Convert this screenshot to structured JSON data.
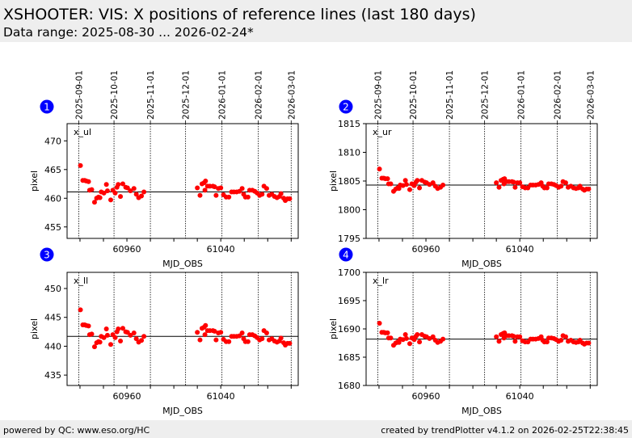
{
  "header": {
    "title": "XSHOOTER: VIS: X positions of reference lines (last 180 days)",
    "subtitle": "Data range: 2025-08-30 ... 2026-02-24*"
  },
  "footer": {
    "left": "powered by QC: www.eso.org/HC",
    "right": "created by trendPlotter v4.1.2 on 2026-02-25T22:38:45"
  },
  "colors": {
    "point": "#ff0000",
    "badge": "#0000ff",
    "ref_line": "#000000",
    "header_bg": "#eeeeee"
  },
  "chart_data": [
    {
      "type": "scatter",
      "panel": "1",
      "series_label": "x_ul",
      "xlabel": "MJD_OBS",
      "ylabel": "pixel",
      "xlim": [
        60909,
        61106
      ],
      "ylim": [
        453,
        473
      ],
      "yticks": [
        455,
        460,
        465,
        470
      ],
      "xticks": [
        60960,
        61040
      ],
      "xminor": [
        60920,
        60940,
        60960,
        60980,
        61000,
        61020,
        61040,
        61060,
        61080,
        61100
      ],
      "date_ticks": [
        {
          "label": "2025-09-01",
          "mjd": 60919
        },
        {
          "label": "2025-10-01",
          "mjd": 60949
        },
        {
          "label": "2025-11-01",
          "mjd": 60980
        },
        {
          "label": "2025-12-01",
          "mjd": 61010
        },
        {
          "label": "2026-01-01",
          "mjd": 61041
        },
        {
          "label": "2026-02-01",
          "mjd": 61072
        },
        {
          "label": "2026-03-01",
          "mjd": 61100
        }
      ],
      "reference": 461.1,
      "values": [
        465.7,
        463.1,
        463.1,
        463.0,
        462.9,
        461.4,
        461.5,
        459.3,
        460.0,
        460.2,
        460.1,
        461.1,
        460.9,
        462.4,
        461.3,
        459.7,
        461.4,
        460.9,
        461.9,
        462.4,
        460.3,
        462.5,
        461.9,
        461.8,
        461.3,
        461.7,
        460.7,
        460.1,
        460.4,
        461.1,
        461.8,
        460.5,
        462.5,
        462.7,
        463.0,
        461.4,
        462.1,
        462.1,
        462.1,
        462.0,
        460.5,
        461.7,
        461.8,
        460.6,
        460.2,
        460.2,
        461.1,
        461.1,
        461.1,
        461.2,
        461.7,
        460.7,
        460.2,
        460.2,
        461.4,
        461.4,
        461.2,
        460.9,
        460.5,
        460.7,
        462.1,
        461.7,
        460.5,
        460.7,
        460.3,
        460.1,
        460.3,
        460.8,
        460.0,
        459.6,
        459.9,
        459.9
      ]
    },
    {
      "type": "scatter",
      "panel": "2",
      "series_label": "x_ur",
      "xlabel": "MJD_OBS",
      "ylabel": "pixel",
      "xlim": [
        60909,
        61106
      ],
      "ylim": [
        1795,
        1815
      ],
      "yticks": [
        1795,
        1800,
        1805,
        1810,
        1815
      ],
      "xticks": [
        60960,
        61040
      ],
      "xminor": [
        60920,
        60940,
        60960,
        60980,
        61000,
        61020,
        61040,
        61060,
        61080,
        61100
      ],
      "date_ticks": [
        {
          "label": "2025-09-01",
          "mjd": 60919
        },
        {
          "label": "2025-10-01",
          "mjd": 60949
        },
        {
          "label": "2025-11-01",
          "mjd": 60980
        },
        {
          "label": "2025-12-01",
          "mjd": 61010
        },
        {
          "label": "2026-01-01",
          "mjd": 61041
        },
        {
          "label": "2026-02-01",
          "mjd": 61072
        },
        {
          "label": "2026-03-01",
          "mjd": 61100
        }
      ],
      "reference": 1804.3,
      "values": [
        1807.1,
        1805.5,
        1805.5,
        1805.4,
        1805.4,
        1804.5,
        1804.5,
        1803.2,
        1803.6,
        1803.8,
        1803.7,
        1804.3,
        1804.2,
        1805.1,
        1804.4,
        1803.5,
        1804.5,
        1804.2,
        1804.8,
        1805.1,
        1803.8,
        1805.1,
        1804.8,
        1804.7,
        1804.4,
        1804.7,
        1804.1,
        1803.7,
        1803.9,
        1804.3,
        1804.7,
        1803.9,
        1805.1,
        1805.3,
        1805.4,
        1804.5,
        1804.9,
        1804.9,
        1804.9,
        1804.8,
        1803.9,
        1804.7,
        1804.7,
        1804.0,
        1803.8,
        1803.8,
        1804.3,
        1804.3,
        1804.3,
        1804.4,
        1804.7,
        1804.1,
        1803.8,
        1803.8,
        1804.5,
        1804.5,
        1804.4,
        1804.2,
        1803.9,
        1804.1,
        1804.9,
        1804.7,
        1803.9,
        1804.1,
        1803.8,
        1803.7,
        1803.8,
        1804.1,
        1803.6,
        1803.4,
        1803.6,
        1803.6
      ]
    },
    {
      "type": "scatter",
      "panel": "3",
      "series_label": "x_ll",
      "xlabel": "MJD_OBS",
      "ylabel": "pixel",
      "xlim": [
        60909,
        61106
      ],
      "ylim": [
        433.2,
        452.8
      ],
      "yticks": [
        435,
        440,
        445,
        450
      ],
      "xticks": [
        60960,
        61040
      ],
      "xminor": [
        60920,
        60940,
        60960,
        60980,
        61000,
        61020,
        61040,
        61060,
        61080,
        61100
      ],
      "date_ticks": [
        {
          "mjd": 60919
        },
        {
          "mjd": 60949
        },
        {
          "mjd": 60980
        },
        {
          "mjd": 61010
        },
        {
          "mjd": 61041
        },
        {
          "mjd": 61072
        },
        {
          "mjd": 61100
        }
      ],
      "reference": 441.7,
      "values": [
        446.3,
        443.7,
        443.7,
        443.6,
        443.5,
        442.0,
        442.1,
        439.9,
        440.6,
        440.8,
        440.7,
        441.7,
        441.5,
        443.0,
        441.9,
        440.3,
        442.0,
        441.5,
        442.5,
        443.0,
        440.9,
        443.1,
        442.5,
        442.4,
        441.9,
        442.3,
        441.3,
        440.7,
        441.0,
        441.7,
        442.4,
        441.1,
        443.1,
        443.3,
        443.6,
        442.0,
        442.7,
        442.7,
        442.7,
        442.6,
        441.1,
        442.3,
        442.4,
        441.2,
        440.8,
        440.8,
        441.7,
        441.7,
        441.7,
        441.8,
        442.3,
        441.3,
        440.8,
        440.8,
        442.0,
        442.0,
        441.8,
        441.5,
        441.1,
        441.3,
        442.7,
        442.3,
        441.1,
        441.3,
        440.9,
        440.7,
        440.9,
        441.4,
        440.6,
        440.2,
        440.5,
        440.5
      ]
    },
    {
      "type": "scatter",
      "panel": "4",
      "series_label": "x_lr",
      "xlabel": "MJD_OBS",
      "ylabel": "pixel",
      "xlim": [
        60909,
        61106
      ],
      "ylim": [
        1680,
        1700
      ],
      "yticks": [
        1680,
        1685,
        1690,
        1695,
        1700
      ],
      "xticks": [
        60960,
        61040
      ],
      "xminor": [
        60920,
        60940,
        60960,
        60980,
        61000,
        61020,
        61040,
        61060,
        61080,
        61100
      ],
      "date_ticks": [
        {
          "mjd": 60919
        },
        {
          "mjd": 60949
        },
        {
          "mjd": 60980
        },
        {
          "mjd": 61010
        },
        {
          "mjd": 61041
        },
        {
          "mjd": 61072
        },
        {
          "mjd": 61100
        }
      ],
      "reference": 1688.2,
      "values": [
        1691.0,
        1689.4,
        1689.4,
        1689.3,
        1689.3,
        1688.4,
        1688.4,
        1687.1,
        1687.5,
        1687.7,
        1687.6,
        1688.2,
        1688.1,
        1689.0,
        1688.3,
        1687.4,
        1688.4,
        1688.1,
        1688.7,
        1689.0,
        1687.7,
        1689.0,
        1688.7,
        1688.6,
        1688.3,
        1688.6,
        1688.0,
        1687.6,
        1687.8,
        1688.2,
        1688.6,
        1687.8,
        1689.0,
        1689.2,
        1689.3,
        1688.4,
        1688.8,
        1688.8,
        1688.8,
        1688.7,
        1687.8,
        1688.6,
        1688.6,
        1687.9,
        1687.7,
        1687.7,
        1688.2,
        1688.2,
        1688.2,
        1688.3,
        1688.6,
        1688.0,
        1687.7,
        1687.7,
        1688.4,
        1688.4,
        1688.3,
        1688.1,
        1687.8,
        1688.0,
        1688.8,
        1688.6,
        1687.8,
        1688.0,
        1687.7,
        1687.6,
        1687.7,
        1688.0,
        1687.5,
        1687.3,
        1687.5,
        1687.5
      ]
    }
  ],
  "mjd_obs": [
    60920.4,
    60922.4,
    60924,
    60925.4,
    60927.3,
    60928.2,
    60930,
    60932.4,
    60934.2,
    60935.8,
    60937,
    60938.1,
    60940.4,
    60942.5,
    60943.4,
    60946.2,
    60948,
    60950,
    60951.5,
    60952.6,
    60954.5,
    60956.5,
    60959,
    60960.5,
    60963,
    60966,
    60968,
    60970,
    60972.4,
    60974.5,
    61020,
    61022.3,
    61024,
    61025.8,
    61027,
    61026.5,
    61028.7,
    61030.7,
    61033.3,
    61034.7,
    61036,
    61037.9,
    61040,
    61042.3,
    61044.6,
    61046.9,
    61049.2,
    61051.2,
    61053.5,
    61055.9,
    61058.2,
    61059.5,
    61061,
    61063.2,
    61064.6,
    61066.9,
    61069,
    61071,
    61073.1,
    61075.2,
    61076.8,
    61079.1,
    61081.2,
    61083.5,
    61085.8,
    61087.9,
    61090,
    61091.3,
    61093.6,
    61095,
    61096.9,
    61098.7
  ]
}
